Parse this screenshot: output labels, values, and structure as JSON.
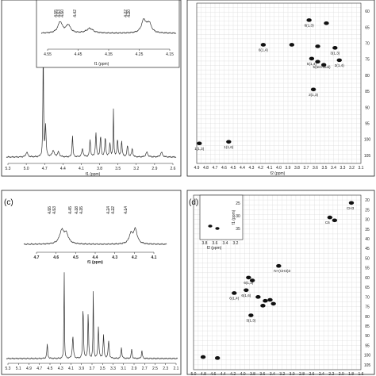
{
  "chart_data": [
    {
      "type": "line",
      "panel": "a",
      "panel_label_visible": false,
      "xlabel": "f1 (ppm)",
      "x_ticks": [
        "5.3",
        "5.0",
        "4.7",
        "4.4",
        "4.1",
        "3.8",
        "3.5",
        "3.2",
        "2.9",
        "2.6"
      ],
      "inset": {
        "xlabel": "f1 (ppm)",
        "x_ticks": [
          "4.55",
          "4.45",
          "4.35",
          "4.25",
          "4.15"
        ],
        "peak_labels": [
          "4.55",
          "4.53",
          "4.50",
          "4.42",
          "4.22",
          "4.20"
        ]
      },
      "peaks_ppm": [
        5.0,
        4.7,
        4.55,
        4.46,
        4.22,
        3.95,
        3.8,
        3.72,
        3.65,
        3.55,
        3.45,
        3.38,
        3.28,
        3.2,
        2.95,
        2.7
      ]
    },
    {
      "type": "scatter",
      "panel": "b",
      "xlabel": "f2 (ppm)",
      "x_ticks": [
        "4.9",
        "4.8",
        "4.7",
        "4.6",
        "4.5",
        "4.4",
        "4.3",
        "4.2",
        "4.1",
        "4.0",
        "3.9",
        "3.8",
        "3.7",
        "3.6",
        "3.5",
        "3.4",
        "3.3",
        "3.2",
        "3.1"
      ],
      "y_ticks": [
        "60",
        "65",
        "70",
        "75",
        "80",
        "85",
        "90",
        "95",
        "100",
        "105"
      ],
      "annotations": [
        "6(1,3)",
        "6(1,6)",
        "4(1,4)",
        "2(1,4)",
        "3(1,4)",
        "5(1,4)",
        "5(terminal)",
        "5(1,3)",
        "2(1,3)",
        "3(1,3)",
        "1(1,3)",
        "1(1,6)"
      ],
      "points": [
        {
          "x": 3.65,
          "y": 61.5,
          "label": "6(1,3)"
        },
        {
          "x": 3.45,
          "y": 62.5
        },
        {
          "x": 4.18,
          "y": 69.5,
          "label": "6(1,4)"
        },
        {
          "x": 3.85,
          "y": 69.5
        },
        {
          "x": 3.55,
          "y": 70.0
        },
        {
          "x": 3.35,
          "y": 70.5,
          "label": "3(1,3)"
        },
        {
          "x": 3.62,
          "y": 74.0,
          "label": "5(1,4)"
        },
        {
          "x": 3.55,
          "y": 75.0,
          "label": "5(terminal)"
        },
        {
          "x": 3.3,
          "y": 74.5,
          "label": "2(1,4)"
        },
        {
          "x": 3.48,
          "y": 76.0
        },
        {
          "x": 3.6,
          "y": 84.0,
          "label": "2(1,3)"
        },
        {
          "x": 4.92,
          "y": 101.5,
          "label": "1(1,3)"
        },
        {
          "x": 4.58,
          "y": 101.0,
          "label": "1(1,6)"
        }
      ]
    },
    {
      "type": "line",
      "panel": "c",
      "xlabel": "f1 (ppm)",
      "x_ticks": [
        "5.3",
        "5.1",
        "4.9",
        "4.7",
        "4.5",
        "4.3",
        "4.1",
        "3.9",
        "3.7",
        "3.5",
        "3.3",
        "3.1",
        "2.9",
        "2.7",
        "2.5",
        "2.3",
        "2.1"
      ],
      "inset": {
        "xlabel": "f1 (ppm)",
        "x_ticks": [
          "4.7",
          "4.6",
          "4.5",
          "4.4",
          "4.3",
          "4.2",
          "4.1"
        ],
        "peak_labels": [
          "4.55",
          "4.53",
          "4.45",
          "4.38",
          "4.35",
          "4.24",
          "4.22",
          "4.14"
        ]
      },
      "peaks_ppm": [
        4.55,
        4.22,
        4.05,
        3.85,
        3.75,
        3.65,
        3.55,
        3.45,
        3.35,
        3.1,
        2.9,
        2.7
      ]
    },
    {
      "type": "scatter",
      "panel": "d",
      "annotations": [
        "CH3",
        "C6",
        "N+(CH3)3",
        "6(1,3)",
        "6(1,6)",
        "6(1,4)",
        "3(1,3)"
      ],
      "inset": {
        "xlabel": "f2 (ppm)",
        "x_ticks": [
          "3.8",
          "3.6",
          "3.4",
          "3.2"
        ],
        "y_ticks": [
          "25",
          "30",
          "35"
        ],
        "ylabel": "f1 (ppm)"
      },
      "x_ticks": [
        "5.0",
        "4.8",
        "4.6",
        "4.4",
        "4.2",
        "4.0",
        "3.8",
        "3.6",
        "3.4",
        "3.2",
        "3.0",
        "2.8",
        "2.6",
        "2.4",
        "2.2",
        "2.0",
        "1.8",
        "1.6"
      ],
      "y_ticks": [
        "20",
        "25",
        "30",
        "35",
        "40",
        "45",
        "50",
        "55",
        "60",
        "65",
        "70",
        "75",
        "80",
        "85",
        "90",
        "95",
        "100",
        "105"
      ],
      "points": [
        {
          "x": 1.75,
          "y": 22.0,
          "label": "CH3"
        },
        {
          "x": 2.2,
          "y": 29.5,
          "label": "C6"
        },
        {
          "x": 2.1,
          "y": 31.0
        },
        {
          "x": 3.27,
          "y": 54.5,
          "label": "N+(CH3)3"
        },
        {
          "x": 3.9,
          "y": 60.5,
          "label": "6(1,3)"
        },
        {
          "x": 3.82,
          "y": 62.0
        },
        {
          "x": 4.2,
          "y": 68.5,
          "label": "6(1,4)"
        },
        {
          "x": 3.95,
          "y": 67.0,
          "label": "6(1,6)"
        },
        {
          "x": 3.7,
          "y": 70.5
        },
        {
          "x": 3.55,
          "y": 72.5
        },
        {
          "x": 3.45,
          "y": 72.0
        },
        {
          "x": 3.6,
          "y": 75.0
        },
        {
          "x": 3.38,
          "y": 74.0
        },
        {
          "x": 3.85,
          "y": 80.0,
          "label": "3(1,3)"
        },
        {
          "x": 4.85,
          "y": 101.5
        },
        {
          "x": 4.55,
          "y": 102.0
        }
      ]
    }
  ],
  "panel_labels": {
    "c": "(c)",
    "d": "(d)"
  }
}
